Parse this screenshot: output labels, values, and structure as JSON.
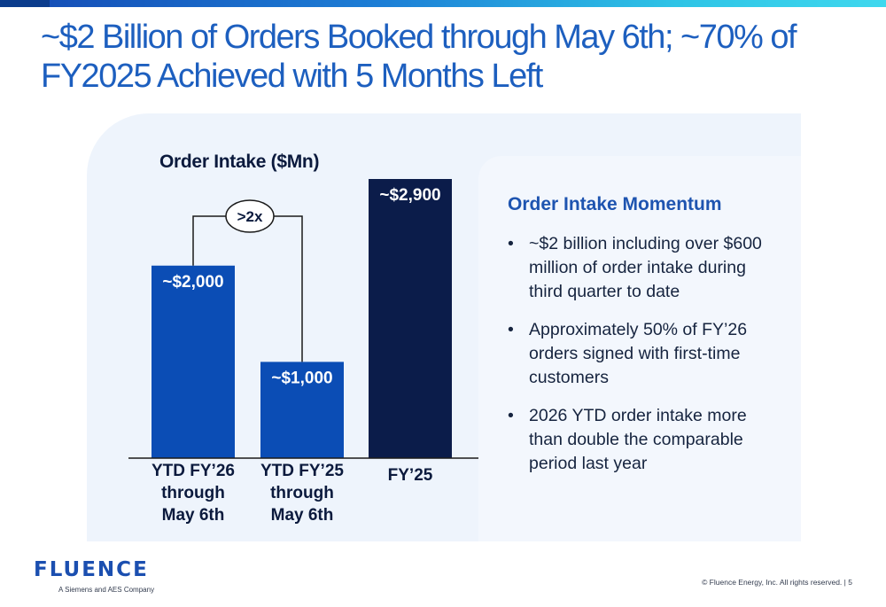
{
  "slide": {
    "title": "~$2 Billion of Orders Booked through May 6th; ~70% of FY2025 Achieved with 5 Months Left",
    "brand_color": "#1d5fbf"
  },
  "chart_data": {
    "type": "bar",
    "title": "Order Intake ($Mn)",
    "categories": [
      "YTD FY’26 through May 6th",
      "YTD FY’25 through May 6th",
      "FY’25"
    ],
    "category_lines": [
      [
        "YTD FY’26",
        "through",
        "May 6th"
      ],
      [
        "YTD FY’25",
        "through",
        "May 6th"
      ],
      [
        "FY’25"
      ]
    ],
    "values": [
      2000,
      1000,
      2900
    ],
    "value_labels": [
      "~$2,000",
      "~$1,000",
      "~$2,900"
    ],
    "colors": [
      "#0b4db5",
      "#0b4db5",
      "#0b1c4a"
    ],
    "ylim": [
      0,
      3200
    ],
    "grid": false,
    "annotation": ">2x"
  },
  "momentum": {
    "title": "Order Intake Momentum",
    "bullet_symbol": "•",
    "bullets": [
      "~$2 billion including over $600 million of order intake during third quarter to date",
      "Approximately 50% of FY’26 orders signed with first-time customers",
      "2026 YTD order intake more than double the comparable period last year"
    ]
  },
  "footer": {
    "logo_text": "FLUENCE",
    "logo_sub": "A Siemens and AES Company",
    "copyright": "© Fluence Energy, Inc. All rights reserved.",
    "page_number": "5",
    "separator": "|"
  }
}
